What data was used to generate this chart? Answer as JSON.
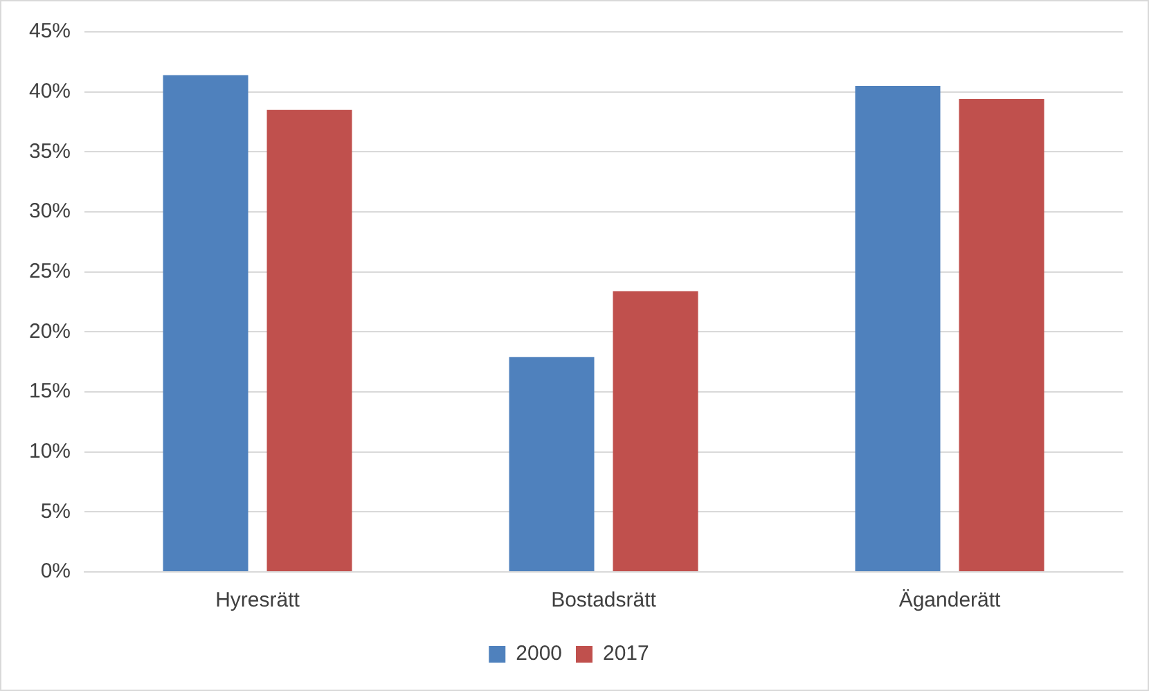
{
  "chart_data": {
    "type": "bar",
    "categories": [
      "Hyresrätt",
      "Bostadsrätt",
      "Äganderätt"
    ],
    "series": [
      {
        "name": "2000",
        "color": "#4f81bd",
        "values": [
          41.4,
          17.9,
          40.5
        ]
      },
      {
        "name": "2017",
        "color": "#c0504d",
        "values": [
          38.5,
          23.4,
          39.4
        ]
      }
    ],
    "ylim": [
      0,
      45
    ],
    "yticks": [
      {
        "value": 0,
        "label": "0%"
      },
      {
        "value": 5,
        "label": "5%"
      },
      {
        "value": 10,
        "label": "10%"
      },
      {
        "value": 15,
        "label": "15%"
      },
      {
        "value": 20,
        "label": "20%"
      },
      {
        "value": 25,
        "label": "25%"
      },
      {
        "value": 30,
        "label": "30%"
      },
      {
        "value": 35,
        "label": "35%"
      },
      {
        "value": 40,
        "label": "40%"
      },
      {
        "value": 45,
        "label": "45%"
      }
    ],
    "grid": "y",
    "legend": "bottom"
  }
}
